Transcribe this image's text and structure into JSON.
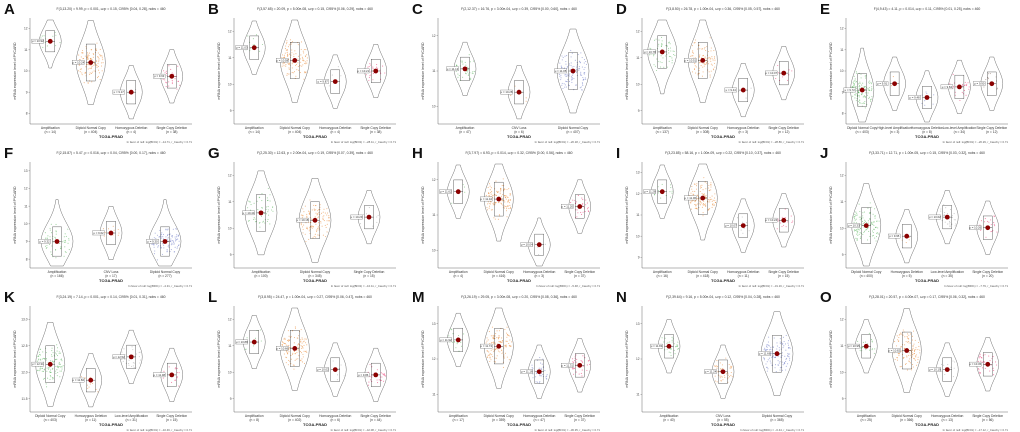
{
  "figure": {
    "panels": [
      {
        "letter": "A",
        "subtitle": "F(3,13.20) = 9.99, p = 0.001, ω²p = 0.15, CI95% [0.04, 0.28], nobs = 460",
        "ylabel": "mRNA expression level of PYCARD",
        "xlabel": "TCGA-PRAD",
        "categories": [
          {
            "name": "Amplification",
            "n": "(n = 14)"
          },
          {
            "name": "Diploid Normal Copy",
            "n": "(n = 404)"
          },
          {
            "name": "Homozygous Deletion",
            "n": "(n = 4)"
          },
          {
            "name": "Single Copy Deletion",
            "n": "(n = 38)"
          }
        ],
        "means": [
          0.78,
          0.58,
          0.3,
          0.45
        ],
        "colors": [
          "#4caf50",
          "#e67e22",
          "#9e9e9e",
          "#e91e63"
        ],
        "counts": [
          14,
          120,
          4,
          30
        ],
        "mean_labels": [
          "μ = 10.92",
          "μ = 10.24",
          "μ = 9.17",
          "μ = 9.63"
        ],
        "yticks": [
          "8",
          "9",
          "10",
          "11",
          "12"
        ],
        "foot": "In favor of null: log(BF01) = −14.71, r_Cauchy = 0.71"
      },
      {
        "letter": "B",
        "subtitle": "F(3,57.65) = 20.09, p = 5.00e-08, ω²p = 0.15, CI95% [0.06, 0.29], nobs = 460",
        "ylabel": "mRNA expression level of PYCARD",
        "xlabel": "TCGA-PRAD",
        "categories": [
          {
            "name": "Amplification",
            "n": "(n = 14)"
          },
          {
            "name": "Diploid Normal Copy",
            "n": "(n = 404)"
          },
          {
            "name": "Homozygous Deletion",
            "n": "(n = 4)"
          },
          {
            "name": "Single Copy Deletion",
            "n": "(n = 38)"
          }
        ],
        "means": [
          0.72,
          0.6,
          0.4,
          0.5
        ],
        "colors": [
          "#4caf50",
          "#e67e22",
          "#9e9e9e",
          "#e91e63"
        ],
        "counts": [
          14,
          120,
          4,
          30
        ],
        "mean_labels": [
          "μ = 11.03",
          "μ = 10.58",
          "μ = 9.87",
          "μ = 10.21"
        ],
        "yticks": [
          "9",
          "10",
          "11",
          "12"
        ],
        "foot": "In favor of null: log(BF01) = −28.11, r_Cauchy = 0.71"
      },
      {
        "letter": "C",
        "subtitle": "F(2,12.37) = 16.76, p = 3.00e-04, ω²p = 0.39, CI95% [0.00, 0.60], nobs = 460",
        "ylabel": "mRNA expression level of PYCARD",
        "xlabel": "TCGA-PRAD",
        "categories": [
          {
            "name": "Amplification",
            "n": "(n = 47)"
          },
          {
            "name": "CNV Loss",
            "n": "(n = 6)"
          },
          {
            "name": "Diploid Normal Copy",
            "n": "(n = 407)"
          }
        ],
        "means": [
          0.52,
          0.3,
          0.5
        ],
        "colors": [
          "#4caf50",
          "#e67e22",
          "#5c6bc0"
        ],
        "counts": [
          40,
          6,
          120
        ],
        "mean_labels": [
          "μ = 11.13",
          "μ = 10.28",
          "μ = 11.05"
        ],
        "yticks": [
          "10",
          "11",
          "12"
        ],
        "foot": "In favor of null: log(BF01) = −20.18, r_Cauchy = 0.71"
      },
      {
        "letter": "D",
        "subtitle": "F(3,8.50) = 26.78, p = 1.00e-04, ω²p = 0.36, CI95% [0.05, 0.57], nobs = 460",
        "ylabel": "mRNA expression level of PYCARD",
        "xlabel": "TCGA-PRAD",
        "categories": [
          {
            "name": "Amplification",
            "n": "(n = 137)"
          },
          {
            "name": "Diploid Normal Copy",
            "n": "(n = 308)"
          },
          {
            "name": "Homozygous Deletion",
            "n": "(n = 3)"
          },
          {
            "name": "Single Copy Deletion",
            "n": "(n = 12)"
          }
        ],
        "means": [
          0.68,
          0.6,
          0.32,
          0.48
        ],
        "colors": [
          "#4caf50",
          "#e67e22",
          "#9e9e9e",
          "#e91e63"
        ],
        "counts": [
          60,
          100,
          3,
          12
        ],
        "mean_labels": [
          "μ = 10.78",
          "μ = 10.51",
          "μ = 9.44",
          "μ = 10.07"
        ],
        "yticks": [
          "9",
          "10",
          "11",
          "12"
        ],
        "foot": "In favor of null: log(BF01) = −28.86, r_Cauchy = 0.71"
      },
      {
        "letter": "E",
        "subtitle": "F(4,9.43) = 4.11, p = 0.014, ω²p = 0.11, CI95% [0.01, 0.25], nobs = 460",
        "ylabel": "mRNA expression level of PYCARD",
        "xlabel": "TCGA-PRAD",
        "categories": [
          {
            "name": "Diploid Normal Copy",
            "n": "(n = 403)"
          },
          {
            "name": "High-level Amplification",
            "n": "(n = 3)"
          },
          {
            "name": "Homozygous Deletion",
            "n": "(n = 8)"
          },
          {
            "name": "Low-level Amplification",
            "n": "(n = 34)"
          },
          {
            "name": "Single Copy Deletion",
            "n": "(n = 12)"
          }
        ],
        "means": [
          0.32,
          0.38,
          0.25,
          0.35,
          0.38
        ],
        "colors": [
          "#4caf50",
          "#e67e22",
          "#5c6bc0",
          "#e91e63",
          "#8d6e63"
        ],
        "counts": [
          120,
          3,
          8,
          30,
          12
        ],
        "mean_labels": [
          "μ = 9.72",
          "μ = 9.91",
          "μ = 9.48",
          "μ = 9.84",
          "μ = 9.90"
        ],
        "yticks": [
          "8",
          "9",
          "10",
          "11",
          "12"
        ],
        "foot": "In favor of null: log(BF01) = −20.29, r_Cauchy = 0.71"
      },
      {
        "letter": "F",
        "subtitle": "F(2,15.87) = 5.47, p = 0.016, ω²p = 0.04, CI95% [0.00, 0.17], nobs = 460",
        "ylabel": "mRNA expression level of PYCARD",
        "xlabel": "TCGA-PRAD",
        "categories": [
          {
            "name": "Amplification",
            "n": "(n = 166)"
          },
          {
            "name": "CNV Loss",
            "n": "(n = 17)"
          },
          {
            "name": "Diploid Normal Copy",
            "n": "(n = 277)"
          }
        ],
        "means": [
          0.25,
          0.33,
          0.25
        ],
        "colors": [
          "#4caf50",
          "#e67e22",
          "#5c6bc0"
        ],
        "counts": [
          60,
          12,
          100
        ],
        "mean_labels": [
          "μ = 9.32",
          "μ = 9.62",
          "μ = 9.30"
        ],
        "yticks": [
          "8",
          "9",
          "10",
          "11",
          "12",
          "13"
        ],
        "foot": "In favor of null: log(BF01) = −4.31, r_Cauchy = 0.71"
      },
      {
        "letter": "G",
        "subtitle": "F(2,25.30) = 12.63, p = 2.00e-04, ω²p = 0.19, CI95% [0.07, 0.39], nobs = 460",
        "ylabel": "mRNA expression level of PYCARD",
        "xlabel": "TCGA-PRAD",
        "categories": [
          {
            "name": "Amplification",
            "n": "(n = 100)"
          },
          {
            "name": "Diploid Normal Copy",
            "n": "(n = 345)"
          },
          {
            "name": "Single Copy Deletion",
            "n": "(n = 15)"
          }
        ],
        "means": [
          0.52,
          0.45,
          0.48
        ],
        "colors": [
          "#4caf50",
          "#e67e22",
          "#9e9e9e"
        ],
        "counts": [
          60,
          120,
          10
        ],
        "mean_labels": [
          "μ = 10.44",
          "μ = 10.18",
          "μ = 10.29"
        ],
        "yticks": [
          "9",
          "10",
          "11",
          "12"
        ],
        "foot": "In favor of null: log(BF01) = −10.11, r_Cauchy = 0.71"
      },
      {
        "letter": "H",
        "subtitle": "F(3,7.97) = 6.93, p = 0.014, ω²p = 0.32, CI95% [0.00, 0.56], nobs = 460",
        "ylabel": "mRNA expression level of PYCARD",
        "xlabel": "TCGA-PRAD",
        "categories": [
          {
            "name": "Amplification",
            "n": "(n = 4)"
          },
          {
            "name": "Diploid Normal Copy",
            "n": "(n = 416)"
          },
          {
            "name": "Homozygous Deletion",
            "n": "(n = 3)"
          },
          {
            "name": "Single Copy Deletion",
            "n": "(n = 37)"
          }
        ],
        "means": [
          0.72,
          0.65,
          0.22,
          0.58
        ],
        "colors": [
          "#4caf50",
          "#e67e22",
          "#9e9e9e",
          "#e91e63"
        ],
        "counts": [
          4,
          120,
          3,
          30
        ],
        "mean_labels": [
          "μ = 11.62",
          "μ = 11.42",
          "μ = 10.04",
          "μ = 11.20"
        ],
        "yticks": [
          "10",
          "11",
          "12"
        ],
        "foot": "In favor of null: log(BF01) = −5.48, r_Cauchy = 0.71"
      },
      {
        "letter": "I",
        "subtitle": "F(3,23.85) = 58.16, p = 1.00e-09, ω²p = 0.22, CI95% [0.10, 0.37], nobs = 460",
        "ylabel": "mRNA expression level of PYCARD",
        "xlabel": "TCGA-PRAD",
        "categories": [
          {
            "name": "Amplification",
            "n": "(n = 16)"
          },
          {
            "name": "Diploid Normal Copy",
            "n": "(n = 418)"
          },
          {
            "name": "Homozygous Deletion",
            "n": "(n = 11)"
          },
          {
            "name": "Single Copy Deletion",
            "n": "(n = 15)"
          }
        ],
        "means": [
          0.72,
          0.66,
          0.4,
          0.45
        ],
        "colors": [
          "#4caf50",
          "#e67e22",
          "#9e9e9e",
          "#e91e63"
        ],
        "counts": [
          16,
          120,
          11,
          15
        ],
        "mean_labels": [
          "μ = 11.28",
          "μ = 11.06",
          "μ = 10.07",
          "μ = 10.24"
        ],
        "yticks": [
          "9",
          "10",
          "11",
          "12",
          "13"
        ],
        "foot": "In favor of null: log(BF01) = −31.16, r_Cauchy = 0.71"
      },
      {
        "letter": "J",
        "subtitle": "F(3,33.71) = 12.71, p = 1.00e-05, ω²p = 0.15, CI95% [0.03, 0.32], nobs = 460",
        "ylabel": "mRNA expression level of PYCARD",
        "xlabel": "TCGA-PRAD",
        "categories": [
          {
            "name": "Diploid Normal Copy",
            "n": "(n = 400)"
          },
          {
            "name": "Homozygous Deletion",
            "n": "(n = 5)"
          },
          {
            "name": "Low-level Amplification",
            "n": "(n = 35)"
          },
          {
            "name": "Single Copy Deletion",
            "n": "(n = 20)"
          }
        ],
        "means": [
          0.4,
          0.3,
          0.48,
          0.38
        ],
        "colors": [
          "#4caf50",
          "#e67e22",
          "#9e9e9e",
          "#e91e63"
        ],
        "counts": [
          120,
          5,
          30,
          20
        ],
        "mean_labels": [
          "μ = 10.33",
          "μ = 9.95",
          "μ = 10.62",
          "μ = 10.26"
        ],
        "yticks": [
          "9",
          "10",
          "11",
          "12"
        ],
        "foot": "In favor of null: log(BF01) = −7.79, r_Cauchy = 0.71"
      },
      {
        "letter": "K",
        "subtitle": "F(3,24.19) = 7.14, p = 0.001, ω²p = 0.14, CI95% [0.01, 0.31], nobs = 460",
        "ylabel": "mRNA expression level of PYCARD",
        "xlabel": "TCGA-PRAD",
        "categories": [
          {
            "name": "Diploid Normal Copy",
            "n": "(n = 403)"
          },
          {
            "name": "Homozygous Deletion",
            "n": "(n = 11)"
          },
          {
            "name": "Low-level Amplification",
            "n": "(n = 31)"
          },
          {
            "name": "Single Copy Deletion",
            "n": "(n = 15)"
          }
        ],
        "means": [
          0.45,
          0.3,
          0.52,
          0.35
        ],
        "colors": [
          "#4caf50",
          "#e67e22",
          "#9e9e9e",
          "#e91e63"
        ],
        "counts": [
          120,
          11,
          30,
          15
        ],
        "mean_labels": [
          "μ = 12.31",
          "μ = 11.82",
          "μ = 12.52",
          "μ = 11.98"
        ],
        "yticks": [
          "11.5",
          "12.0",
          "12.5",
          "13.0"
        ],
        "foot": "In favor of null: log(BF01) = −10.46, r_Cauchy = 0.71"
      },
      {
        "letter": "L",
        "subtitle": "F(3,8.95) = 24.47, p = 1.00e-04, ω²p = 0.27, CI95% [0.06, 0.47], nobs = 460",
        "ylabel": "mRNA expression level of PYCARD",
        "xlabel": "TCGA-PRAD",
        "categories": [
          {
            "name": "Amplification",
            "n": "(n = 8)"
          },
          {
            "name": "Diploid Normal Copy",
            "n": "(n = 402)"
          },
          {
            "name": "Homozygous Deletion",
            "n": "(n = 6)"
          },
          {
            "name": "Single Copy Deletion",
            "n": "(n = 44)"
          }
        ],
        "means": [
          0.66,
          0.6,
          0.4,
          0.35
        ],
        "colors": [
          "#4caf50",
          "#e67e22",
          "#9e9e9e",
          "#e91e63"
        ],
        "counts": [
          8,
          120,
          6,
          30
        ],
        "mean_labels": [
          "μ = 10.88",
          "μ = 10.66",
          "μ = 10.02",
          "μ = 9.86"
        ],
        "yticks": [
          "9",
          "10",
          "11",
          "12"
        ],
        "foot": "In favor of null: log(BF01) = −42.08, r_Cauchy = 0.71"
      },
      {
        "letter": "M",
        "subtitle": "F(3,26.19) = 29.05, p = 3.00e-08, ω²p = 0.20, CI95% [0.08, 0.36], nobs = 460",
        "ylabel": "mRNA expression level of PYCARD",
        "xlabel": "TCGA-PRAD",
        "categories": [
          {
            "name": "Amplification",
            "n": "(n = 17)"
          },
          {
            "name": "Diploid Normal Copy",
            "n": "(n = 359)"
          },
          {
            "name": "Homozygous Deletion",
            "n": "(n = 47)"
          },
          {
            "name": "Single Copy Deletion",
            "n": "(n = 37)"
          }
        ],
        "means": [
          0.68,
          0.62,
          0.38,
          0.44
        ],
        "colors": [
          "#4caf50",
          "#e67e22",
          "#5c6bc0",
          "#e91e63"
        ],
        "counts": [
          17,
          120,
          40,
          37
        ],
        "mean_labels": [
          "μ = 11.92",
          "μ = 11.74",
          "μ = 11.16",
          "μ = 11.31"
        ],
        "yticks": [
          "11",
          "12",
          "13"
        ],
        "foot": "In favor of null: log(BF01) = −36.35, r_Cauchy = 0.71"
      },
      {
        "letter": "N",
        "subtitle": "F(2,39.64) = 9.16, p = 5.00e-04, ω²p = 0.12, CI95% [0.04, 0.28], nobs = 460",
        "ylabel": "mRNA expression level of PYCARD",
        "xlabel": "TCGA-PRAD",
        "categories": [
          {
            "name": "Amplification",
            "n": "(n = 40)"
          },
          {
            "name": "CNV Loss",
            "n": "(n = 55)"
          },
          {
            "name": "Diploid Normal Copy",
            "n": "(n = 365)"
          }
        ],
        "means": [
          0.62,
          0.38,
          0.55
        ],
        "colors": [
          "#4caf50",
          "#e67e22",
          "#5c6bc0"
        ],
        "counts": [
          40,
          50,
          120
        ],
        "mean_labels": [
          "μ = 11.83",
          "μ = 11.24",
          "μ = 11.66"
        ],
        "yticks": [
          "11",
          "12",
          "13"
        ],
        "foot": "In favor of null: log(BF01) = −6.44, r_Cauchy = 0.71"
      },
      {
        "letter": "O",
        "subtitle": "F(3,28.01) = 20.57, p = 4.00e-07, ω²p = 0.17, CI95% [0.06, 0.32], nobs = 460",
        "ylabel": "mRNA expression level of PYCARD",
        "xlabel": "TCGA-PRAD",
        "categories": [
          {
            "name": "Amplification",
            "n": "(n = 25)"
          },
          {
            "name": "Diploid Normal Copy",
            "n": "(n = 366)"
          },
          {
            "name": "Homozygous Deletion",
            "n": "(n = 13)"
          },
          {
            "name": "Single Copy Deletion",
            "n": "(n = 56)"
          }
        ],
        "means": [
          0.62,
          0.58,
          0.4,
          0.45
        ],
        "colors": [
          "#4caf50",
          "#e67e22",
          "#9e9e9e",
          "#e91e63"
        ],
        "counts": [
          25,
          120,
          13,
          40
        ],
        "mean_labels": [
          "μ = 10.95",
          "μ = 10.82",
          "μ = 10.19",
          "μ = 10.36"
        ],
        "yticks": [
          "9",
          "10",
          "11",
          "12"
        ],
        "foot": "In favor of null: log(BF01) = −17.12, r_Cauchy = 0.71"
      }
    ]
  },
  "chart_data": {
    "type": "violin",
    "layout": "3 rows x 5 columns",
    "panels": [
      "A",
      "B",
      "C",
      "D",
      "E",
      "F",
      "G",
      "H",
      "I",
      "J",
      "K",
      "L",
      "M",
      "N",
      "O"
    ],
    "value_axis_label": "mRNA expression level",
    "group_axis_label": "TCGA-PRAD",
    "mean_marker_color": "#8b0000"
  }
}
